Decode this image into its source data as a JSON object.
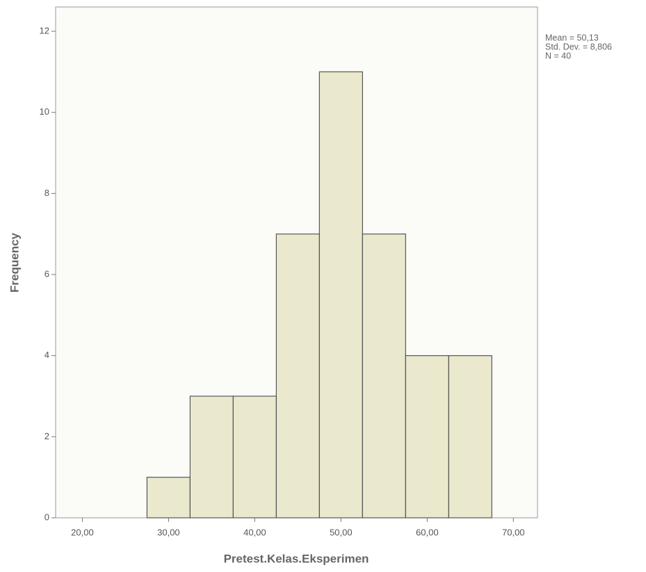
{
  "chart_data": {
    "type": "histogram",
    "xlabel": "Pretest.Kelas.Eksperimen",
    "ylabel": "Frequency",
    "bins": [
      27.5,
      32.5,
      37.5,
      42.5,
      47.5,
      52.5,
      57.5,
      62.5,
      67.5
    ],
    "counts": [
      1,
      3,
      3,
      7,
      11,
      7,
      4,
      4
    ],
    "color": "#e8e5c5",
    "edgecolor": "#555555",
    "xlim": [
      16.9,
      72.8
    ],
    "ylim": [
      0,
      12.6
    ],
    "xticks": [
      {
        "value": 20,
        "label": "20,00"
      },
      {
        "value": 30,
        "label": "30,00"
      },
      {
        "value": 40,
        "label": "40,00"
      },
      {
        "value": 50,
        "label": "50,00"
      },
      {
        "value": 60,
        "label": "60,00"
      },
      {
        "value": 70,
        "label": "70,00"
      }
    ],
    "yticks": [
      0,
      2,
      4,
      6,
      8,
      10,
      12
    ],
    "annotations": [
      "Mean = 50,13",
      "Std. Dev. = 8,806",
      "N = 40"
    ]
  }
}
